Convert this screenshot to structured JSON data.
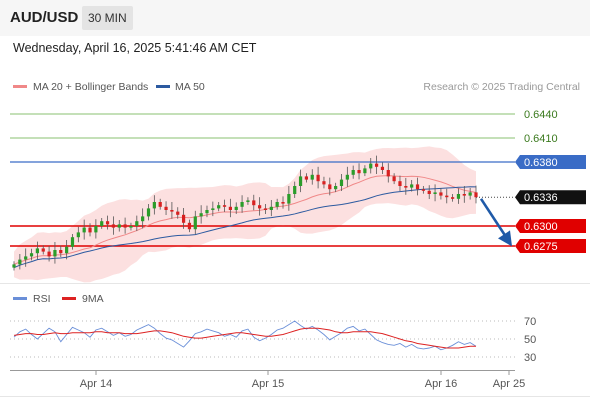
{
  "header": {
    "pair": "AUD/USD",
    "timeframe": "30 MIN",
    "datetime": "Wednesday, April 16, 2025 5:41:46 AM CET"
  },
  "legend": {
    "ma20": "MA 20 + Bollinger Bands",
    "ma50": "MA 50",
    "credit": "Research © 2025 Trading Central",
    "rsi": "RSI",
    "rsi_ma": "9MA"
  },
  "colors": {
    "candle_up": "#2a9d2a",
    "candle_down": "#d82020",
    "ma20": "#f08888",
    "ma50": "#2c5aa0",
    "bollinger_fill": "#fbdada",
    "resistance": "#3a6cc6",
    "support": "#e00000",
    "target": "#88c070",
    "arrow": "#1f5aa8",
    "rsi": "#6a8fd8",
    "rsi_ma": "#dd2222"
  },
  "chart_data": [
    {
      "type": "candlestick",
      "x_ticks": [
        "Apr 14",
        "Apr 15",
        "Apr 16",
        "Apr 25"
      ],
      "ylim": [
        0.6235,
        0.646
      ],
      "current_price": 0.6336,
      "levels": [
        {
          "label": "0.6440",
          "value": 0.644,
          "kind": "target"
        },
        {
          "label": "0.6410",
          "value": 0.641,
          "kind": "target"
        },
        {
          "label": "0.6380",
          "value": 0.638,
          "kind": "resistance"
        },
        {
          "label": "0.6336",
          "value": 0.6336,
          "kind": "current"
        },
        {
          "label": "0.6300",
          "value": 0.63,
          "kind": "support"
        },
        {
          "label": "0.6275",
          "value": 0.6275,
          "kind": "support"
        }
      ],
      "forecast_arrow": {
        "from": 0.6334,
        "to": 0.6282
      },
      "closes": [
        0.6252,
        0.6258,
        0.6262,
        0.6266,
        0.6272,
        0.6268,
        0.6262,
        0.627,
        0.6266,
        0.6274,
        0.6286,
        0.6292,
        0.6298,
        0.6292,
        0.63,
        0.6306,
        0.6302,
        0.6298,
        0.6302,
        0.6298,
        0.63,
        0.6306,
        0.6312,
        0.6322,
        0.633,
        0.6324,
        0.632,
        0.6318,
        0.6314,
        0.6304,
        0.6296,
        0.6312,
        0.6316,
        0.632,
        0.6322,
        0.6326,
        0.6324,
        0.632,
        0.6324,
        0.633,
        0.6332,
        0.6326,
        0.6322,
        0.632,
        0.6324,
        0.633,
        0.6328,
        0.634,
        0.635,
        0.6362,
        0.6358,
        0.6364,
        0.6356,
        0.6352,
        0.6346,
        0.635,
        0.6358,
        0.6364,
        0.637,
        0.6366,
        0.6372,
        0.6378,
        0.6374,
        0.637,
        0.6362,
        0.6356,
        0.635,
        0.6348,
        0.6352,
        0.6346,
        0.6344,
        0.634,
        0.6342,
        0.6338,
        0.6336,
        0.6334,
        0.634,
        0.6338,
        0.6342,
        0.6336
      ],
      "rsi_ylim": [
        20,
        80
      ],
      "rsi_ticks": [
        70,
        50,
        30
      ],
      "rsi": [
        52,
        58,
        61,
        55,
        50,
        56,
        62,
        58,
        47,
        55,
        63,
        60,
        57,
        52,
        60,
        62,
        58,
        54,
        57,
        53,
        55,
        60,
        63,
        66,
        62,
        56,
        51,
        49,
        45,
        41,
        48,
        56,
        58,
        61,
        59,
        57,
        53,
        55,
        52,
        59,
        61,
        52,
        48,
        51,
        55,
        60,
        62,
        66,
        70,
        65,
        61,
        64,
        60,
        55,
        49,
        53,
        57,
        62,
        64,
        59,
        61,
        55,
        49,
        46,
        44,
        43,
        45,
        41,
        44,
        40,
        39,
        40,
        42,
        38,
        40,
        43,
        47,
        44,
        46,
        42
      ],
      "rsi_ma9": [
        54,
        55,
        56,
        56,
        55,
        55,
        56,
        57,
        56,
        56,
        57,
        57,
        57,
        57,
        58,
        58,
        57,
        57,
        57,
        56,
        56,
        56,
        57,
        58,
        59,
        59,
        58,
        57,
        55,
        53,
        52,
        51,
        51,
        52,
        53,
        54,
        55,
        56,
        57,
        57,
        56,
        55,
        54,
        53,
        53,
        54,
        55,
        57,
        59,
        61,
        62,
        62,
        62,
        61,
        60,
        58,
        57,
        57,
        58,
        58,
        58,
        58,
        57,
        56,
        54,
        52,
        50,
        48,
        47,
        45,
        44,
        43,
        42,
        41,
        40,
        40,
        40,
        41,
        42,
        42
      ]
    }
  ]
}
